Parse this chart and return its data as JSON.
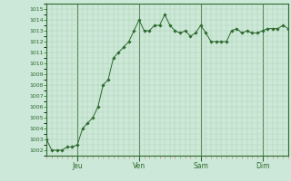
{
  "x_values": [
    0,
    1,
    2,
    3,
    4,
    5,
    6,
    7,
    8,
    9,
    10,
    11,
    12,
    13,
    14,
    15,
    16,
    17,
    18,
    19,
    20,
    21,
    22,
    23,
    24,
    25,
    26,
    27,
    28,
    29,
    30,
    31,
    32,
    33,
    34,
    35,
    36,
    37,
    38,
    39,
    40,
    41,
    42,
    43,
    44,
    45,
    46,
    47
  ],
  "y_values": [
    1003,
    1002,
    1002,
    1002,
    1002.3,
    1002.3,
    1002.5,
    1004,
    1004.5,
    1005,
    1006,
    1008,
    1008.5,
    1010.5,
    1011,
    1011.5,
    1012,
    1013,
    1014,
    1013,
    1013,
    1013.5,
    1013.5,
    1014.5,
    1013.5,
    1013,
    1012.8,
    1013,
    1012.5,
    1012.8,
    1013.5,
    1012.8,
    1012,
    1012,
    1012,
    1012,
    1013,
    1013.2,
    1012.8,
    1013,
    1012.8,
    1012.8,
    1013,
    1013.2,
    1013.2,
    1013.2,
    1013.5,
    1013.2
  ],
  "ylim": [
    1001.5,
    1015.5
  ],
  "yticks": [
    1002,
    1003,
    1004,
    1005,
    1006,
    1007,
    1008,
    1009,
    1010,
    1011,
    1012,
    1013,
    1014,
    1015
  ],
  "xlim": [
    0,
    47
  ],
  "day_positions": [
    6,
    18,
    30,
    42
  ],
  "day_labels": [
    "Jeu",
    "Ven",
    "Sam",
    "Dim"
  ],
  "line_color": "#2d6a2d",
  "marker_color": "#2d6a2d",
  "bg_color": "#cce8d8",
  "grid_color_major": "#5a8a5a",
  "grid_color_minor": "#a8cca8",
  "tick_color_minor_x": "#cc8888",
  "border_color": "#2d6a2d",
  "fig_width": 3.2,
  "fig_height": 2.0,
  "dpi": 100
}
